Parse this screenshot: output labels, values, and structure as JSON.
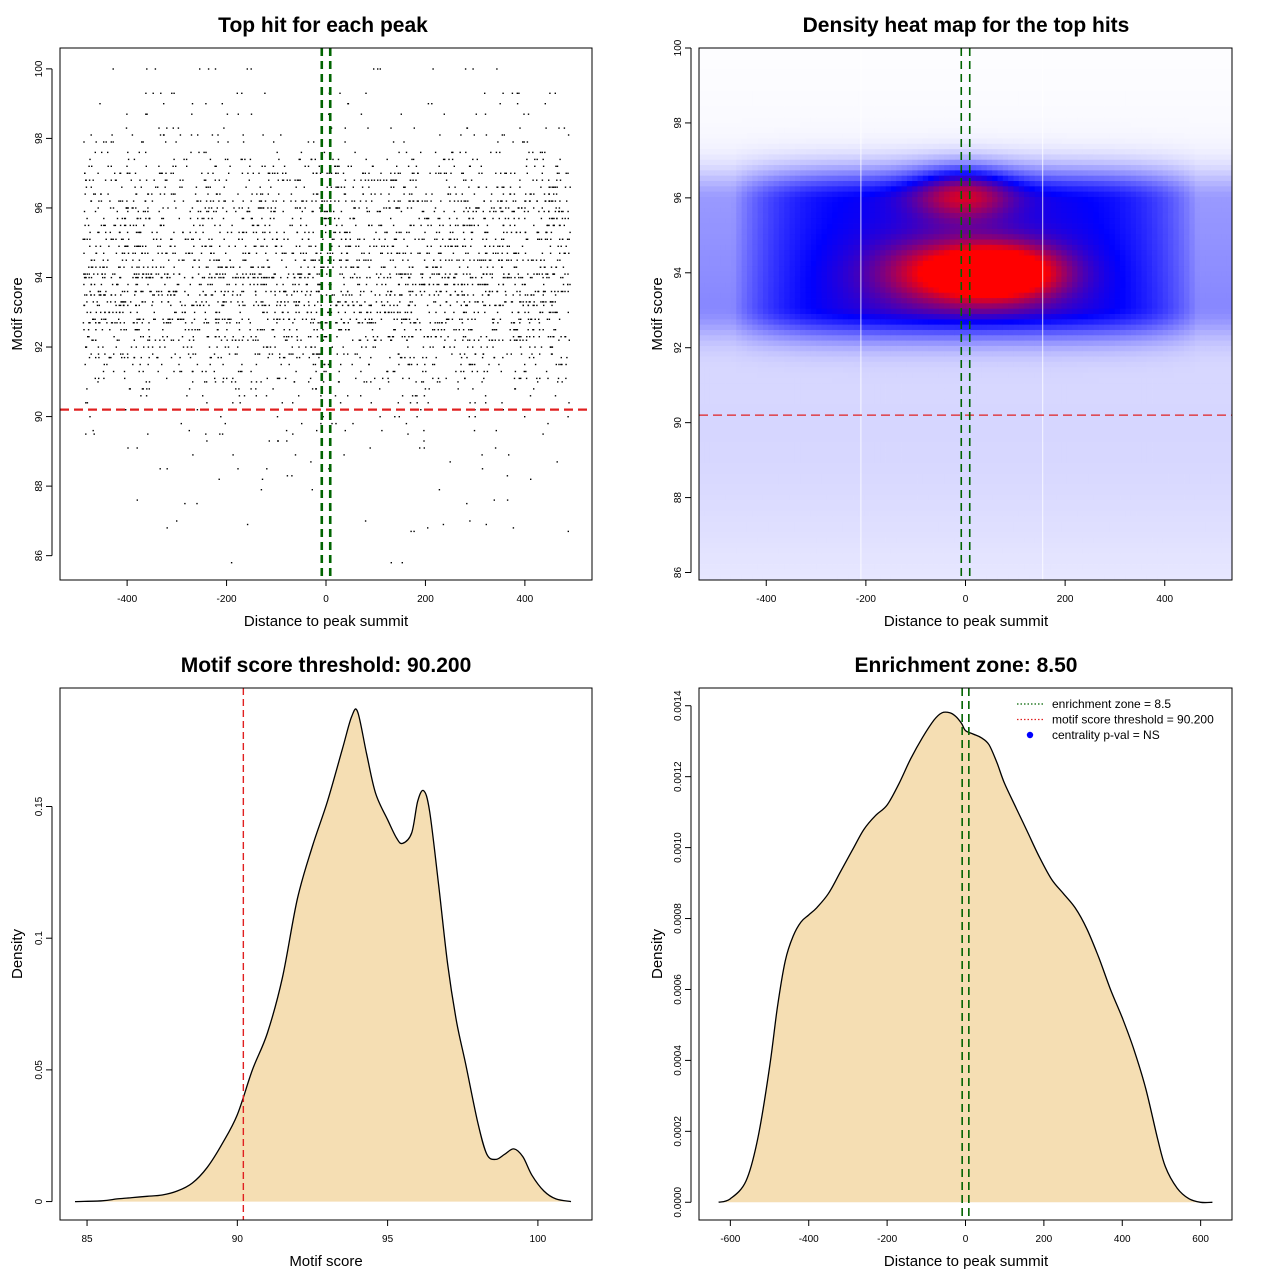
{
  "colors": {
    "threshold": "#e02020",
    "zone": "#006400",
    "fill": "#f5deb3",
    "heat_low": "#ffffff",
    "heat_mid": "#0000ff",
    "heat_high": "#ff0000",
    "pval_dot": "#0000ff"
  },
  "chart_data": [
    {
      "type": "scatter",
      "title": "Top hit for each peak",
      "xlabel": "Distance to peak summit",
      "ylabel": "Motif score",
      "xlim": [
        -535,
        535
      ],
      "ylim": [
        85.3,
        100.6
      ],
      "xticks": [
        -400,
        -200,
        0,
        200,
        400
      ],
      "yticks": [
        86,
        88,
        90,
        92,
        94,
        96,
        98,
        100
      ],
      "x_range": [
        -490,
        490
      ],
      "score_levels": [
        85.8,
        86.7,
        86.8,
        86.9,
        87.0,
        87.5,
        87.6,
        87.9,
        88.2,
        88.3,
        88.5,
        88.7,
        88.9,
        89.1,
        89.3,
        89.5,
        89.6,
        89.8,
        90.0,
        90.2,
        90.4,
        90.6,
        90.8,
        91.0,
        91.1,
        91.3,
        91.5,
        91.7,
        91.8,
        92.0,
        92.2,
        92.3,
        92.5,
        92.7,
        92.8,
        93.0,
        93.2,
        93.3,
        93.5,
        93.6,
        93.8,
        94.0,
        94.1,
        94.3,
        94.5,
        94.7,
        94.9,
        95.1,
        95.3,
        95.5,
        95.7,
        95.9,
        96.0,
        96.2,
        96.4,
        96.6,
        96.8,
        97.0,
        97.2,
        97.4,
        97.6,
        97.9,
        98.1,
        98.3,
        98.7,
        99.0,
        99.3,
        100.0
      ],
      "level_weights": [
        1,
        1,
        1,
        1,
        1,
        1,
        1,
        1,
        1,
        1,
        2,
        1,
        2,
        2,
        2,
        3,
        3,
        3,
        4,
        5,
        6,
        7,
        8,
        11,
        12,
        14,
        16,
        17,
        18,
        20,
        22,
        24,
        26,
        28,
        29,
        31,
        32,
        31,
        30,
        32,
        34,
        40,
        38,
        33,
        32,
        33,
        31,
        30,
        28,
        27,
        25,
        24,
        26,
        34,
        22,
        20,
        22,
        28,
        14,
        12,
        10,
        8,
        7,
        6,
        5,
        4,
        6,
        5
      ],
      "threshold": 90.2,
      "zone": [
        -8.5,
        8.5
      ]
    },
    {
      "type": "heatmap",
      "title": "Density heat map for the top hits",
      "xlabel": "Distance to peak summit",
      "ylabel": "Motif score",
      "xlim": [
        -535,
        535
      ],
      "ylim": [
        85.8,
        100.0
      ],
      "xticks": [
        -400,
        -200,
        0,
        200,
        400
      ],
      "yticks": [
        86,
        88,
        90,
        92,
        94,
        96,
        98,
        100
      ],
      "hotspots": [
        {
          "x": -10,
          "y": 94.0,
          "sx": 110,
          "sy": 0.6,
          "w": 1.0
        },
        {
          "x": 90,
          "y": 94.0,
          "sx": 80,
          "sy": 0.5,
          "w": 0.8
        },
        {
          "x": -5,
          "y": 96.1,
          "sx": 70,
          "sy": 0.5,
          "w": 0.75
        }
      ],
      "band": {
        "y_low": 92.0,
        "y_high": 97.0,
        "x_range": [
          -490,
          490
        ]
      },
      "white_lines_x": [
        -210,
        155
      ],
      "threshold": 90.2,
      "zone": [
        -8.5,
        8.5
      ]
    },
    {
      "type": "area",
      "title": "Motif score threshold: 90.200",
      "xlabel": "Motif score",
      "ylabel": "Density",
      "xlim": [
        84.1,
        101.8
      ],
      "ylim": [
        -0.007,
        0.195
      ],
      "xticks": [
        85,
        90,
        95,
        100
      ],
      "yticks": [
        0.0,
        0.05,
        0.1,
        0.15
      ],
      "x": [
        84.6,
        85.5,
        86.0,
        86.5,
        87.0,
        87.5,
        88.0,
        88.5,
        89.0,
        89.5,
        90.0,
        90.5,
        91.0,
        91.5,
        92.0,
        92.5,
        93.0,
        93.5,
        93.8,
        94.0,
        94.3,
        94.6,
        95.0,
        95.3,
        95.5,
        95.8,
        96.0,
        96.2,
        96.4,
        96.7,
        97.0,
        97.3,
        97.6,
        98.0,
        98.3,
        98.6,
        98.9,
        99.2,
        99.5,
        99.8,
        100.2,
        100.6,
        101.1
      ],
      "y": [
        0.0,
        0.0003,
        0.001,
        0.0015,
        0.002,
        0.0025,
        0.004,
        0.007,
        0.013,
        0.022,
        0.033,
        0.05,
        0.064,
        0.085,
        0.115,
        0.135,
        0.152,
        0.172,
        0.184,
        0.186,
        0.17,
        0.155,
        0.145,
        0.138,
        0.136,
        0.14,
        0.152,
        0.156,
        0.148,
        0.12,
        0.09,
        0.068,
        0.052,
        0.03,
        0.018,
        0.016,
        0.018,
        0.02,
        0.017,
        0.01,
        0.004,
        0.001,
        0.0
      ],
      "threshold": 90.2
    },
    {
      "type": "area",
      "title": "Enrichment zone: 8.50",
      "xlabel": "Distance to peak summit",
      "ylabel": "Density",
      "xlim": [
        -680,
        680
      ],
      "ylim": [
        -5e-05,
        0.00145
      ],
      "xticks": [
        -600,
        -400,
        -200,
        0,
        200,
        400,
        600
      ],
      "yticks": [
        0.0,
        0.0002,
        0.0004,
        0.0006,
        0.0008,
        0.001,
        0.0012,
        0.0014
      ],
      "ytick_labels": [
        "0.0000",
        "0.0002",
        "0.0004",
        "0.0006",
        "0.0008",
        "0.0010",
        "0.0012",
        "0.0014"
      ],
      "x": [
        -630,
        -600,
        -560,
        -530,
        -500,
        -480,
        -460,
        -440,
        -420,
        -400,
        -380,
        -350,
        -320,
        -290,
        -260,
        -230,
        -200,
        -170,
        -140,
        -110,
        -80,
        -60,
        -40,
        -25,
        -10,
        0,
        20,
        40,
        60,
        80,
        100,
        130,
        160,
        190,
        220,
        250,
        280,
        310,
        340,
        370,
        400,
        430,
        460,
        490,
        510,
        540,
        570,
        600,
        630
      ],
      "y": [
        0.0,
        1e-05,
        6e-05,
        0.00018,
        0.00038,
        0.00055,
        0.00068,
        0.00075,
        0.00079,
        0.00081,
        0.00083,
        0.00087,
        0.00093,
        0.00099,
        0.00105,
        0.00109,
        0.00112,
        0.00118,
        0.00125,
        0.00131,
        0.00136,
        0.00138,
        0.00138,
        0.00137,
        0.00135,
        0.00133,
        0.00132,
        0.00131,
        0.00129,
        0.00124,
        0.00118,
        0.00111,
        0.00104,
        0.00097,
        0.00091,
        0.00087,
        0.00083,
        0.00077,
        0.00069,
        0.0006,
        0.00052,
        0.00043,
        0.00032,
        0.00018,
        0.0001,
        4e-05,
        1e-05,
        0.0,
        0.0
      ],
      "zone": [
        -8.5,
        8.5
      ],
      "legend": {
        "position": "top-right",
        "entries": [
          {
            "label": "enrichment zone = 8.5",
            "style": "dotted",
            "color_key": "zone"
          },
          {
            "label": "motif score threshold = 90.200",
            "style": "dotted",
            "color_key": "threshold"
          },
          {
            "label": "centrality p-val = NS",
            "style": "dot",
            "color_key": "pval_dot"
          }
        ]
      }
    }
  ]
}
